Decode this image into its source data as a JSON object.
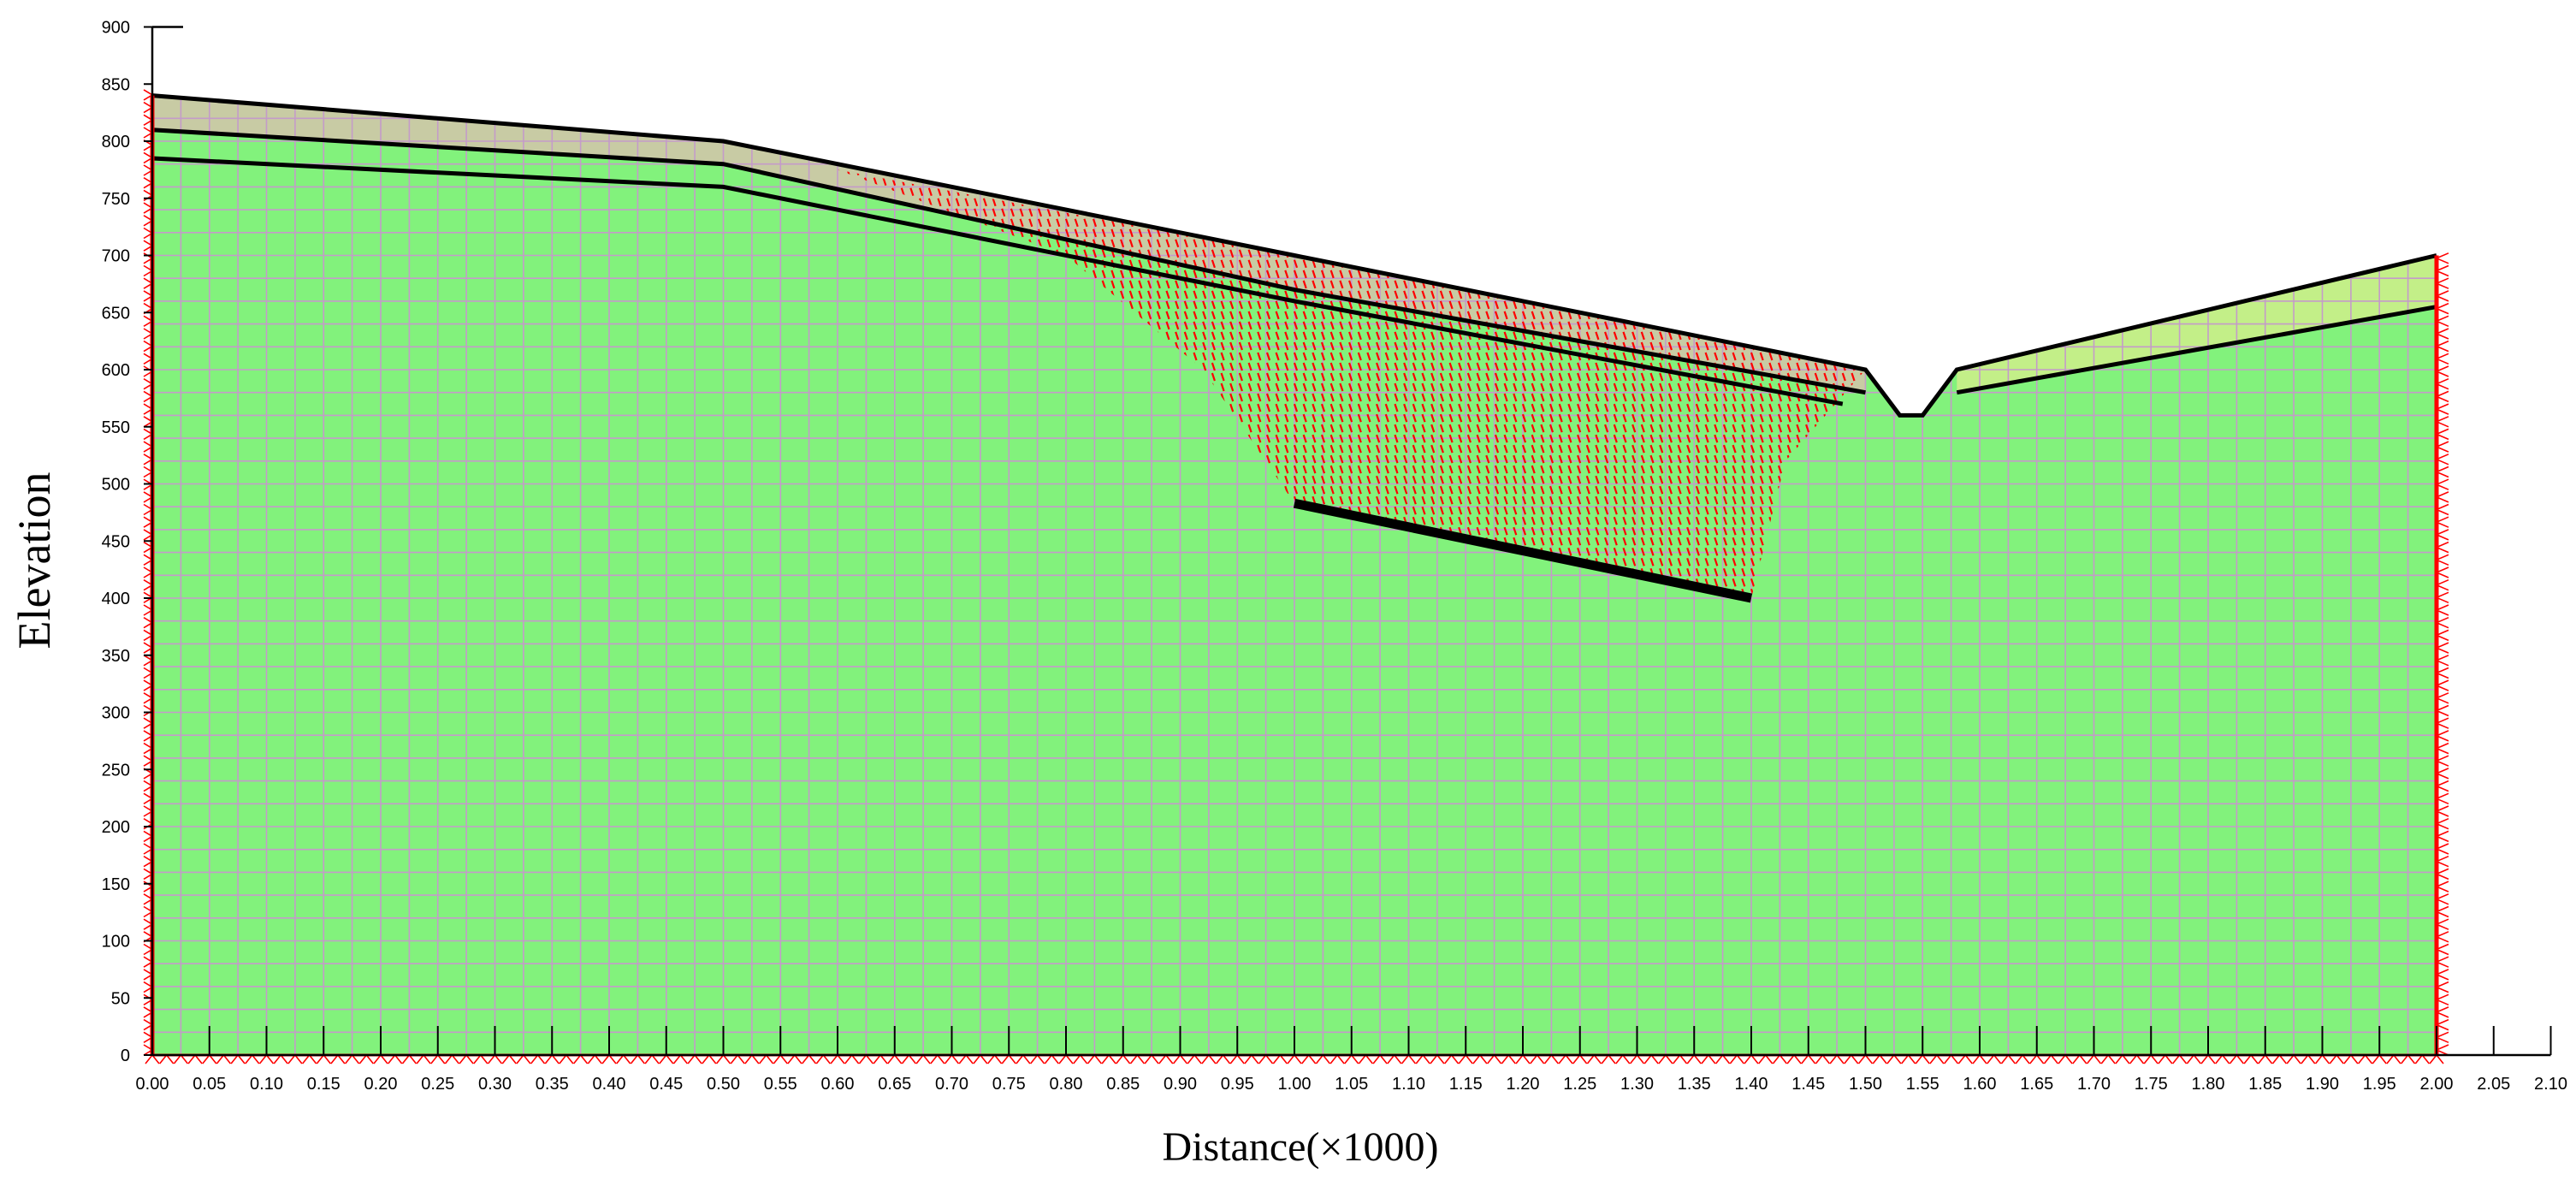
{
  "chart_data": {
    "type": "diagram",
    "xlabel": "Distance(×1000)",
    "ylabel": "Elevation",
    "x_ticks": [
      "0.00",
      "0.05",
      "0.10",
      "0.15",
      "0.20",
      "0.25",
      "0.30",
      "0.35",
      "0.40",
      "0.45",
      "0.50",
      "0.55",
      "0.60",
      "0.65",
      "0.70",
      "0.75",
      "0.80",
      "0.85",
      "0.90",
      "0.95",
      "1.00",
      "1.05",
      "1.10",
      "1.15",
      "1.20",
      "1.25",
      "1.30",
      "1.35",
      "1.40",
      "1.45",
      "1.50",
      "1.55",
      "1.60",
      "1.65",
      "1.70",
      "1.75",
      "1.80",
      "1.85",
      "1.90",
      "1.95",
      "2.00",
      "2.05",
      "2.10"
    ],
    "y_ticks": [
      "0",
      "50",
      "100",
      "150",
      "200",
      "250",
      "300",
      "350",
      "400",
      "450",
      "500",
      "550",
      "600",
      "650",
      "700",
      "750",
      "800",
      "850",
      "900"
    ],
    "xlim": [
      0,
      2.1
    ],
    "ylim": [
      0,
      900
    ],
    "ground_surface": [
      [
        0,
        840
      ],
      [
        0.5,
        800
      ],
      [
        1.0,
        700
      ],
      [
        1.5,
        600
      ],
      [
        1.53,
        560
      ],
      [
        1.55,
        560
      ],
      [
        1.58,
        600
      ],
      [
        2.0,
        700
      ]
    ],
    "layer_boundaries": [
      [
        [
          0,
          810
        ],
        [
          0.5,
          780
        ],
        [
          1.0,
          670
        ],
        [
          1.5,
          580
        ]
      ],
      [
        [
          0,
          785
        ],
        [
          0.5,
          760
        ],
        [
          1.0,
          660
        ],
        [
          1.48,
          570
        ]
      ],
      [
        [
          1.58,
          580
        ],
        [
          2.0,
          655
        ]
      ]
    ],
    "fault_line": [
      [
        1.0,
        483
      ],
      [
        1.4,
        400
      ]
    ],
    "deformation_zone": [
      [
        0.6,
        775
      ],
      [
        1.0,
        700
      ],
      [
        1.5,
        600
      ],
      [
        1.43,
        520
      ],
      [
        1.4,
        400
      ],
      [
        1.0,
        483
      ],
      [
        0.92,
        600
      ],
      [
        0.8,
        700
      ]
    ],
    "colors": {
      "rock": "#82f27c",
      "mesh": "#c49bc9",
      "topsoil": "#c8cba4",
      "right_topsoil": "#c3ef88",
      "boundary": "#000000",
      "deformation": "#ff0000",
      "supports": "#ff0000"
    }
  }
}
